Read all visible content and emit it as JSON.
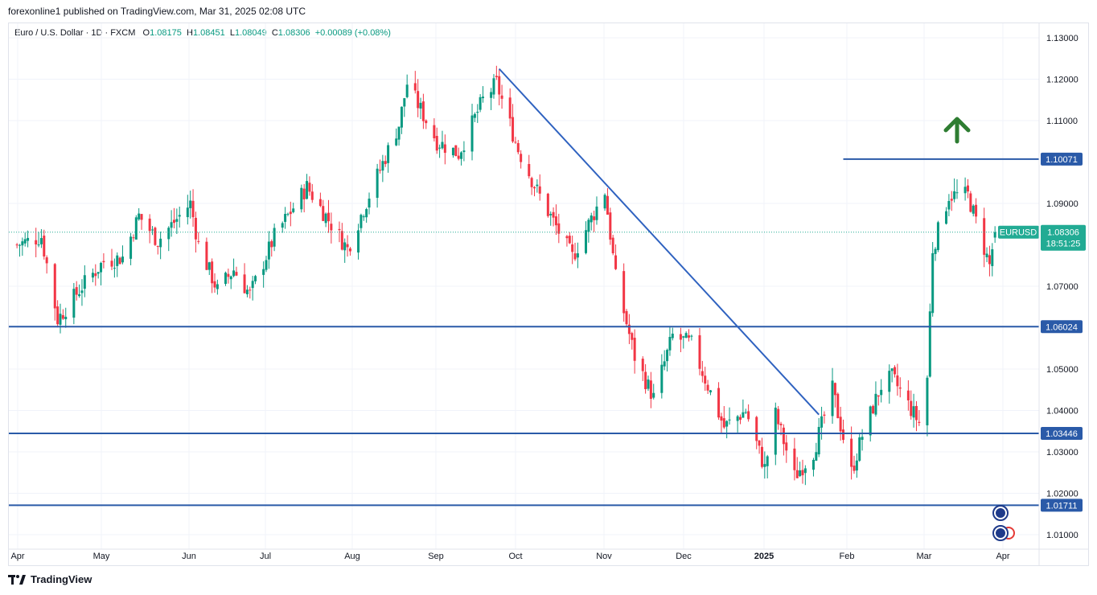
{
  "header": {
    "published": "forexonline1 published on TradingView.com, Mar 31, 2025 02:08 UTC"
  },
  "legend": {
    "symbol": "Euro / U.S. Dollar · 1D · FXCM",
    "o_label": "O",
    "o": "1.08175",
    "h_label": "H",
    "h": "1.08451",
    "l_label": "L",
    "l": "1.08049",
    "c_label": "C",
    "c": "1.08306",
    "change": "+0.00089 (+0.08%)"
  },
  "footer": {
    "brand": "TradingView"
  },
  "colors": {
    "up": "#089981",
    "down": "#f23645",
    "line": "#2962ff",
    "trend": "#3d6ec9",
    "arrow": "#2e7d32",
    "price_tag": "#22ab94"
  },
  "chart_data": {
    "type": "candlestick",
    "title": "Euro / U.S. Dollar",
    "x_tick_labels": [
      "Apr",
      "May",
      "Jun",
      "Jul",
      "Aug",
      "Sep",
      "Oct",
      "Nov",
      "Dec",
      "2025",
      "Feb",
      "Mar",
      "Apr"
    ],
    "y_tick_labels": [
      "1.13000",
      "1.12000",
      "1.11000",
      "1.09000",
      "1.07000",
      "1.05000",
      "1.04000",
      "1.03000",
      "1.02000",
      "1.01000"
    ],
    "ylim": [
      1.005,
      1.13
    ],
    "horizontal_levels": [
      {
        "value": 1.10071,
        "label": "1.10071",
        "start": "2025-01-31"
      },
      {
        "value": 1.06024,
        "label": "1.06024",
        "start": "2024-04-01"
      },
      {
        "value": 1.03446,
        "label": "1.03446",
        "start": "2024-04-01"
      },
      {
        "value": 1.01711,
        "label": "1.01711",
        "start": "2024-04-01"
      }
    ],
    "trendline": {
      "from": [
        "2024-09-26",
        1.1225
      ],
      "to": [
        "2025-01-22",
        1.039
      ]
    },
    "current_price": {
      "symbol": "EURUSD",
      "value": "1.08306",
      "countdown": "18:51:25"
    },
    "annotation": "up-arrow",
    "close_path": [
      [
        "2024-04-01",
        1.08
      ],
      [
        "2024-04-10",
        1.082
      ],
      [
        "2024-04-16",
        1.062
      ],
      [
        "2024-04-25",
        1.07
      ],
      [
        "2024-05-03",
        1.076
      ],
      [
        "2024-05-10",
        1.077
      ],
      [
        "2024-05-16",
        1.087
      ],
      [
        "2024-05-23",
        1.081
      ],
      [
        "2024-06-04",
        1.09
      ],
      [
        "2024-06-07",
        1.08
      ],
      [
        "2024-06-14",
        1.069
      ],
      [
        "2024-06-20",
        1.074
      ],
      [
        "2024-06-26",
        1.068
      ],
      [
        "2024-07-05",
        1.082
      ],
      [
        "2024-07-17",
        1.094
      ],
      [
        "2024-07-26",
        1.085
      ],
      [
        "2024-08-01",
        1.079
      ],
      [
        "2024-08-09",
        1.092
      ],
      [
        "2024-08-20",
        1.109
      ],
      [
        "2024-08-23",
        1.119
      ],
      [
        "2024-09-03",
        1.105
      ],
      [
        "2024-09-11",
        1.102
      ],
      [
        "2024-09-20",
        1.115
      ],
      [
        "2024-09-25",
        1.119
      ],
      [
        "2024-10-03",
        1.103
      ],
      [
        "2024-10-10",
        1.093
      ],
      [
        "2024-10-23",
        1.077
      ],
      [
        "2024-11-04",
        1.093
      ],
      [
        "2024-11-08",
        1.072
      ],
      [
        "2024-11-15",
        1.053
      ],
      [
        "2024-11-22",
        1.043
      ],
      [
        "2024-11-29",
        1.058
      ],
      [
        "2024-12-06",
        1.056
      ],
      [
        "2024-12-18",
        1.036
      ],
      [
        "2024-12-26",
        1.04
      ],
      [
        "2025-01-02",
        1.026
      ],
      [
        "2025-01-06",
        1.039
      ],
      [
        "2025-01-13",
        1.024
      ],
      [
        "2025-01-20",
        1.03
      ],
      [
        "2025-01-27",
        1.045
      ],
      [
        "2025-02-03",
        1.025
      ],
      [
        "2025-02-07",
        1.034
      ],
      [
        "2025-02-14",
        1.046
      ],
      [
        "2025-02-18",
        1.048
      ],
      [
        "2025-02-28",
        1.037
      ],
      [
        "2025-03-03",
        1.048
      ],
      [
        "2025-03-05",
        1.079
      ],
      [
        "2025-03-11",
        1.092
      ],
      [
        "2025-03-18",
        1.092
      ],
      [
        "2025-03-26",
        1.075
      ],
      [
        "2025-03-28",
        1.083
      ]
    ]
  }
}
